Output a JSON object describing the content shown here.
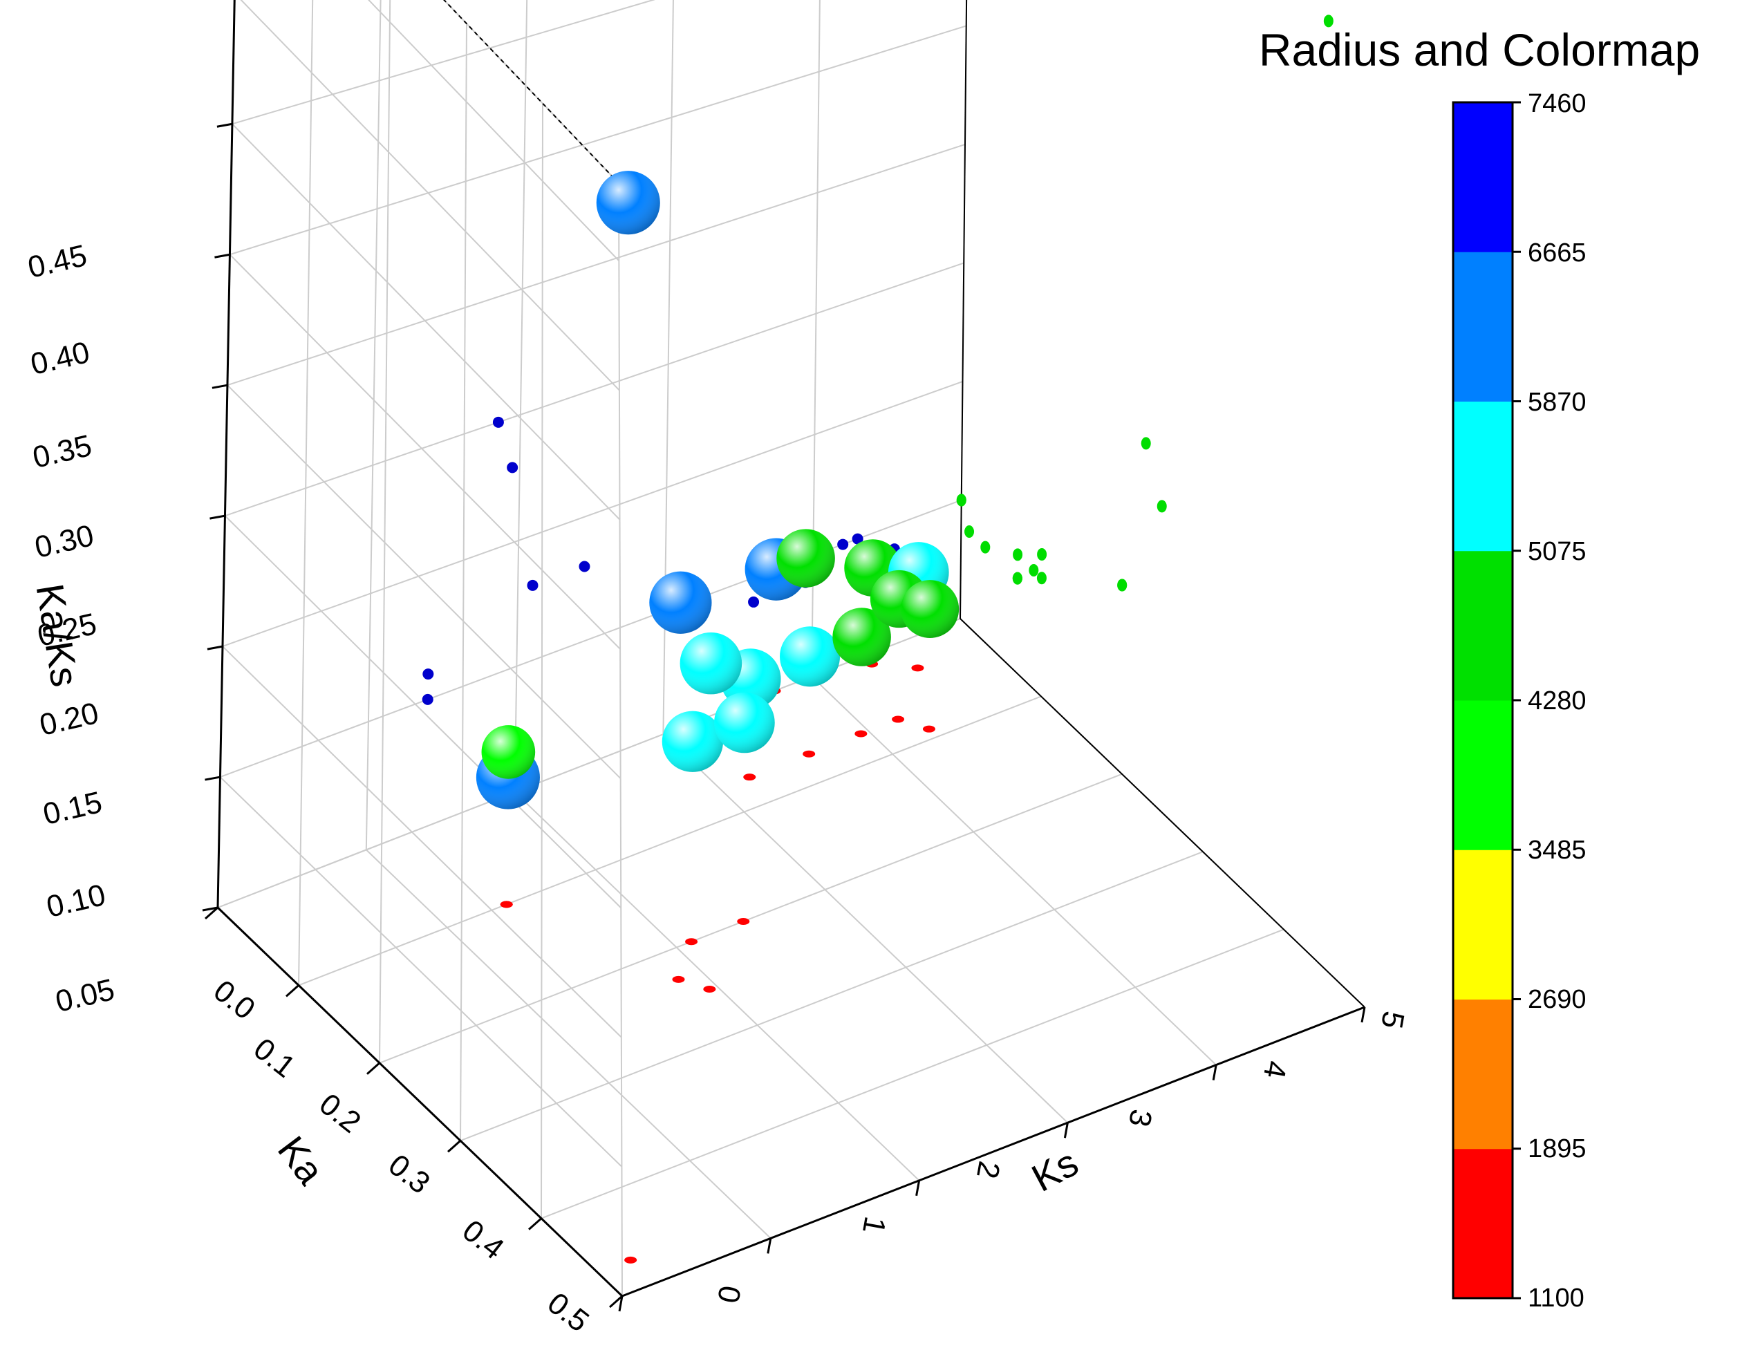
{
  "chart_data": {
    "type": "scatter",
    "dimensions": "3d",
    "axes": {
      "x": {
        "label": "Ks",
        "range": [
          0,
          5
        ],
        "ticks": [
          "0",
          "1",
          "2",
          "3",
          "4",
          "5"
        ]
      },
      "y": {
        "label": "Ka",
        "range": [
          0.0,
          0.5
        ],
        "ticks": [
          "0.0",
          "0.1",
          "0.2",
          "0.3",
          "0.4",
          "0.5"
        ]
      },
      "z": {
        "label": "Ka/Ks",
        "range": [
          0.05,
          0.48
        ],
        "ticks": [
          "0.05",
          "0.10",
          "0.15",
          "0.20",
          "0.25",
          "0.30",
          "0.35",
          "0.40",
          "0.45"
        ]
      }
    },
    "grid": true,
    "colorbar": {
      "title": "Radius and Colormap",
      "levels": [
        "1100",
        "1895",
        "2690",
        "3485",
        "4280",
        "5075",
        "5870",
        "6665",
        "7460"
      ],
      "colors": [
        "#ff0000",
        "#ff8000",
        "#ffff00",
        "#00ff00",
        "#00e000",
        "#00ffff",
        "#0080ff",
        "#0000ff"
      ]
    },
    "points": [
      {
        "ks": 0.22,
        "ka": 0.47,
        "kaks": 0.46,
        "size": 6200
      },
      {
        "ks": 2.1,
        "ka": 0.2,
        "kaks": 0.13,
        "size": 5600
      },
      {
        "ks": 2.45,
        "ka": 0.2,
        "kaks": 0.13,
        "size": 5500
      },
      {
        "ks": 1.85,
        "ka": 0.23,
        "kaks": 0.2,
        "size": 5900
      },
      {
        "ks": 1.95,
        "ka": 0.25,
        "kaks": 0.18,
        "size": 5800
      },
      {
        "ks": 1.4,
        "ka": 0.1,
        "kaks": 0.1,
        "size": 6200
      },
      {
        "ks": 1.4,
        "ka": 0.1,
        "kaks": 0.11,
        "size": 3900
      },
      {
        "ks": 3.2,
        "ka": 0.07,
        "kaks": 0.09,
        "size": 5500
      },
      {
        "ks": 3.6,
        "ka": 0.07,
        "kaks": 0.09,
        "size": 5400
      },
      {
        "ks": 3.95,
        "ka": 0.07,
        "kaks": 0.09,
        "size": 5000
      },
      {
        "ks": 4.2,
        "ka": 0.07,
        "kaks": 0.1,
        "size": 4800
      },
      {
        "ks": 4.3,
        "ka": 0.09,
        "kaks": 0.1,
        "size": 4900
      },
      {
        "ks": 3.75,
        "ka": 0.0,
        "kaks": 0.1,
        "size": 5900
      },
      {
        "ks": 3.95,
        "ka": 0.0,
        "kaks": 0.1,
        "size": 5000
      },
      {
        "ks": 4.35,
        "ka": 0.01,
        "kaks": 0.09,
        "size": 4700
      },
      {
        "ks": 4.55,
        "ka": 0.03,
        "kaks": 0.09,
        "size": 5500
      }
    ]
  }
}
